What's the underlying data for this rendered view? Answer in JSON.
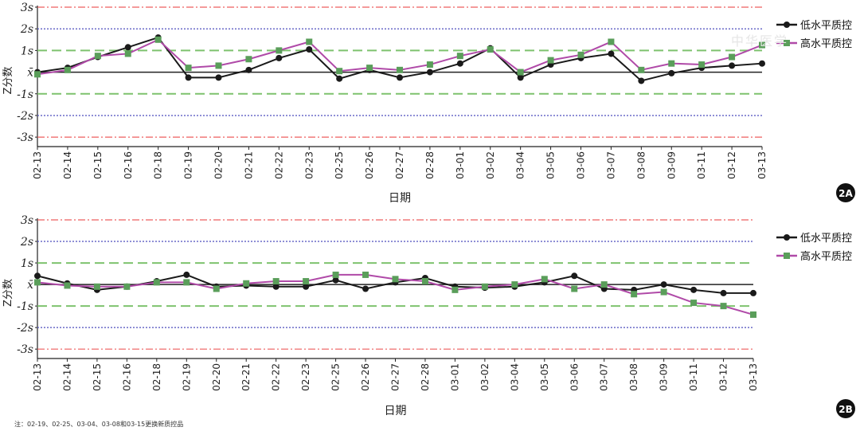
{
  "footnote": "注：02-19、02-25、03-04、03-08和03-15更换新质控品",
  "watermark": "中华医学",
  "colors": {
    "low": "#1a1a1a",
    "high_line": "#b04aa8",
    "high_marker": "#5a9e5a",
    "ref_3s": "#ee5f5f",
    "ref_2s": "#6a6ac8",
    "ref_1s": "#7ec26e",
    "ref_mean": "#222222"
  },
  "chart_data": [
    {
      "type": "line",
      "panel_label": "2A",
      "xlabel": "日期",
      "ylabel": "Z分数",
      "ylim": [
        -3.4,
        3.0
      ],
      "yticks": [
        {
          "v": 3,
          "label": "3s"
        },
        {
          "v": 2,
          "label": "2s"
        },
        {
          "v": 1,
          "label": "1s"
        },
        {
          "v": 0,
          "label": "x̄"
        },
        {
          "v": -1,
          "label": "-1s"
        },
        {
          "v": -2,
          "label": "-2s"
        },
        {
          "v": -3,
          "label": "-3s"
        }
      ],
      "reference_lines": [
        {
          "v": 3,
          "style": "ref_3s"
        },
        {
          "v": 2,
          "style": "ref_2s"
        },
        {
          "v": 1,
          "style": "ref_1s"
        },
        {
          "v": 0,
          "style": "ref_mean"
        },
        {
          "v": -1,
          "style": "ref_1s"
        },
        {
          "v": -2,
          "style": "ref_2s"
        },
        {
          "v": -3,
          "style": "ref_3s"
        }
      ],
      "categories": [
        "02-13",
        "02-14",
        "02-15",
        "02-16",
        "02-18",
        "02-19",
        "02-20",
        "02-21",
        "02-22",
        "02-23",
        "02-25",
        "02-26",
        "02-27",
        "02-28",
        "03-01",
        "03-02",
        "03-04",
        "03-05",
        "03-06",
        "03-07",
        "03-08",
        "03-09",
        "03-11",
        "03-12",
        "03-13"
      ],
      "legend": "right",
      "series": [
        {
          "name": "低水平质控",
          "color_key": "low",
          "values": [
            0.0,
            0.2,
            0.7,
            1.15,
            1.6,
            -0.25,
            -0.25,
            0.1,
            0.65,
            1.05,
            -0.3,
            0.1,
            -0.25,
            0.0,
            0.4,
            1.1,
            -0.25,
            0.35,
            0.65,
            0.85,
            -0.4,
            -0.05,
            0.2,
            0.3,
            0.4
          ]
        },
        {
          "name": "高水平质控",
          "color_key": "high_line",
          "values": [
            -0.1,
            0.1,
            0.75,
            0.85,
            1.5,
            0.2,
            0.3,
            0.6,
            1.0,
            1.4,
            0.05,
            0.2,
            0.1,
            0.35,
            0.75,
            1.05,
            0.0,
            0.55,
            0.8,
            1.4,
            0.1,
            0.4,
            0.35,
            0.7,
            1.25
          ]
        }
      ]
    },
    {
      "type": "line",
      "panel_label": "2B",
      "xlabel": "日期",
      "ylabel": "Z分数",
      "ylim": [
        -3.4,
        3.0
      ],
      "yticks": [
        {
          "v": 3,
          "label": "3s"
        },
        {
          "v": 2,
          "label": "2s"
        },
        {
          "v": 1,
          "label": "1s"
        },
        {
          "v": 0,
          "label": "x̄"
        },
        {
          "v": -1,
          "label": "-1s"
        },
        {
          "v": -2,
          "label": "-2s"
        },
        {
          "v": -3,
          "label": "-3s"
        }
      ],
      "reference_lines": [
        {
          "v": 3,
          "style": "ref_3s"
        },
        {
          "v": 2,
          "style": "ref_2s"
        },
        {
          "v": 1,
          "style": "ref_1s"
        },
        {
          "v": 0,
          "style": "ref_mean"
        },
        {
          "v": -1,
          "style": "ref_1s"
        },
        {
          "v": -2,
          "style": "ref_2s"
        },
        {
          "v": -3,
          "style": "ref_3s"
        }
      ],
      "categories": [
        "02-13",
        "02-14",
        "02-15",
        "02-16",
        "02-18",
        "02-19",
        "02-20",
        "02-21",
        "02-22",
        "02-23",
        "02-25",
        "02-26",
        "02-27",
        "02-28",
        "03-01",
        "03-02",
        "03-04",
        "03-05",
        "03-06",
        "03-07",
        "03-08",
        "03-09",
        "03-11",
        "03-12",
        "03-13"
      ],
      "legend": "right",
      "series": [
        {
          "name": "低水平质控",
          "color_key": "low",
          "values": [
            0.4,
            0.05,
            -0.25,
            -0.1,
            0.15,
            0.45,
            -0.1,
            -0.05,
            -0.1,
            -0.1,
            0.2,
            -0.2,
            0.1,
            0.3,
            -0.1,
            -0.15,
            -0.1,
            0.1,
            0.4,
            -0.2,
            -0.25,
            0.0,
            -0.25,
            -0.4,
            -0.4
          ]
        },
        {
          "name": "高水平质控",
          "color_key": "high_line",
          "values": [
            0.1,
            -0.05,
            -0.1,
            -0.1,
            0.1,
            0.1,
            -0.2,
            0.05,
            0.15,
            0.15,
            0.45,
            0.45,
            0.25,
            0.15,
            -0.25,
            -0.1,
            0.0,
            0.25,
            -0.2,
            0.0,
            -0.45,
            -0.35,
            -0.85,
            -1.0,
            -1.4
          ]
        }
      ]
    }
  ]
}
